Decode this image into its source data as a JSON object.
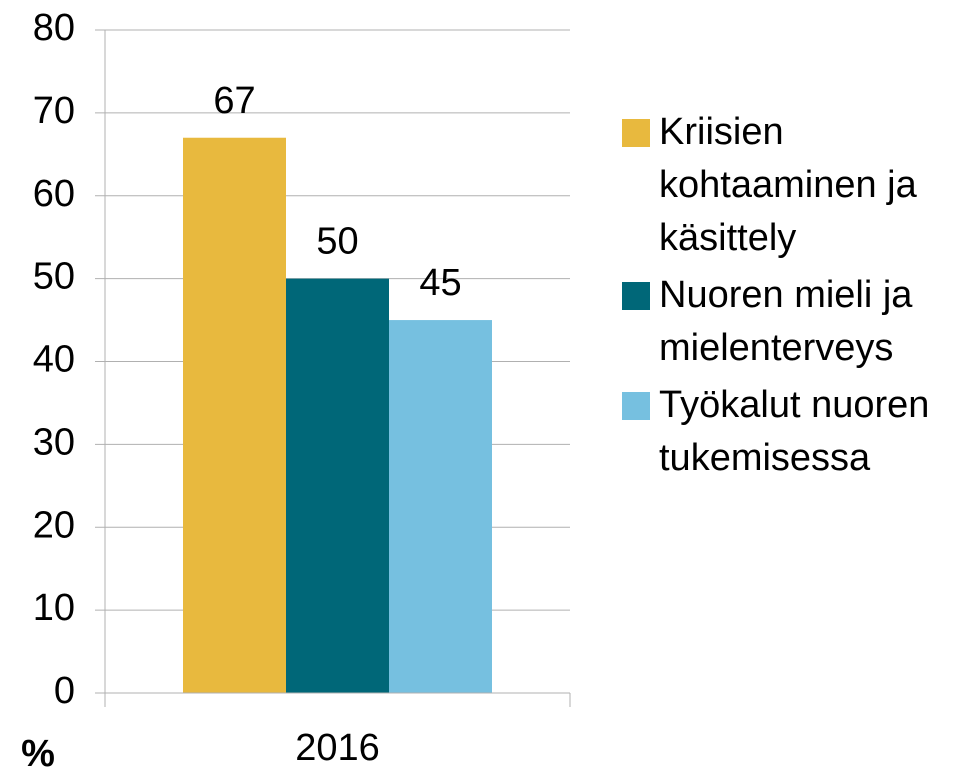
{
  "chart_data": {
    "type": "bar",
    "categories": [
      "2016"
    ],
    "series": [
      {
        "name": "Kriisien kohtaaminen ja käsittely",
        "color": "#e8b93e",
        "values": [
          67
        ]
      },
      {
        "name": "Nuoren mieli ja mielenterveys",
        "color": "#006778",
        "values": [
          50
        ]
      },
      {
        "name": "Työkalut nuoren tukemisessa",
        "color": "#76c0e0",
        "values": [
          45
        ]
      }
    ],
    "y_label": "%",
    "ylim": [
      0,
      80
    ],
    "yticks": [
      0,
      10,
      20,
      30,
      40,
      50,
      60,
      70,
      80
    ],
    "grid": true,
    "legend": "right"
  }
}
